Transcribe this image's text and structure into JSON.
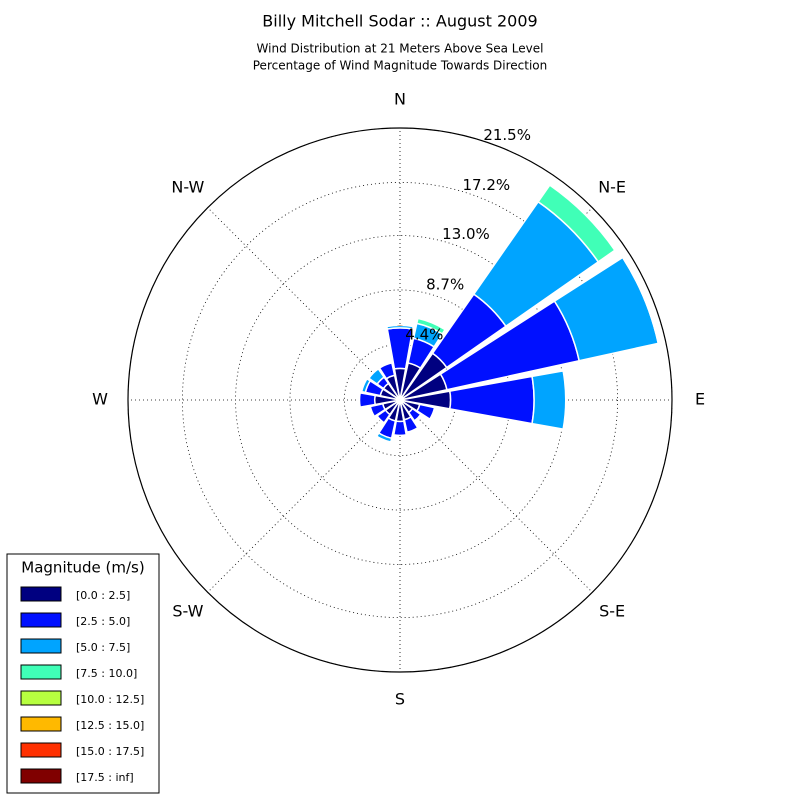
{
  "chart_data": {
    "type": "windrose",
    "title": "Billy Mitchell Sodar :: August 2009",
    "subtitle": [
      "Wind Distribution at 21 Meters Above Sea Level",
      "Percentage of Wind Magnitude Towards Direction"
    ],
    "categories": [
      "N",
      null,
      "N-E",
      null,
      "E",
      null,
      "S-E",
      null,
      "S",
      null,
      "S-W",
      null,
      "W",
      null,
      "N-W",
      null
    ],
    "legend_title": "Magnitude (m/s)",
    "legend_position": "lower left",
    "grid": true,
    "rlim": [
      0,
      21.5
    ],
    "rticks": [
      {
        "value": 4.4,
        "label": "4.4%"
      },
      {
        "value": 8.7,
        "label": "8.7%"
      },
      {
        "value": 13.0,
        "label": "13.0%"
      },
      {
        "value": 17.2,
        "label": "17.2%"
      },
      {
        "value": 21.5,
        "label": "21.5%"
      }
    ],
    "series": [
      {
        "name": "[0.0 : 2.5]",
        "color": "#000080",
        "values": [
          2.5,
          3.0,
          4.5,
          3.8,
          4.0,
          1.6,
          1.2,
          1.6,
          1.7,
          1.7,
          1.4,
          1.4,
          2.0,
          1.6,
          1.6,
          2.0
        ]
      },
      {
        "name": "[2.5 : 5.0]",
        "color": "#0010ff",
        "values": [
          3.2,
          2.0,
          5.7,
          10.7,
          6.6,
          1.2,
          0.8,
          1.0,
          1.1,
          1.4,
          0.8,
          1.0,
          1.2,
          1.2,
          0.6,
          1.0
        ]
      },
      {
        "name": "[5.0 : 7.5]",
        "color": "#00a4ff",
        "values": [
          0.2,
          1.2,
          8.9,
          6.4,
          2.5,
          0,
          0,
          0,
          0,
          0.3,
          0,
          0,
          0,
          0.3,
          0.8,
          0
        ]
      },
      {
        "name": "[7.5 : 10.0]",
        "color": "#40ffb7",
        "values": [
          0,
          0.4,
          1.6,
          0.1,
          0,
          0,
          0,
          0,
          0,
          0,
          0,
          0,
          0,
          0,
          0,
          0
        ]
      },
      {
        "name": "[10.0 : 12.5]",
        "color": "#b7ff40",
        "values": [
          0,
          0,
          0,
          0,
          0,
          0,
          0,
          0,
          0,
          0,
          0,
          0,
          0,
          0,
          0,
          0
        ]
      },
      {
        "name": "[12.5 : 15.0]",
        "color": "#ffb900",
        "values": [
          0,
          0,
          0,
          0,
          0,
          0,
          0,
          0,
          0,
          0,
          0,
          0,
          0,
          0,
          0,
          0
        ]
      },
      {
        "name": "[15.0 : 17.5]",
        "color": "#ff3000",
        "values": [
          0,
          0,
          0,
          0,
          0,
          0,
          0,
          0,
          0,
          0,
          0,
          0,
          0,
          0,
          0,
          0
        ]
      },
      {
        "name": "[17.5 : inf]",
        "color": "#800000",
        "values": [
          0,
          0,
          0,
          0,
          0,
          0,
          0,
          0,
          0,
          0,
          0,
          0,
          0,
          0,
          0,
          0
        ]
      }
    ]
  }
}
